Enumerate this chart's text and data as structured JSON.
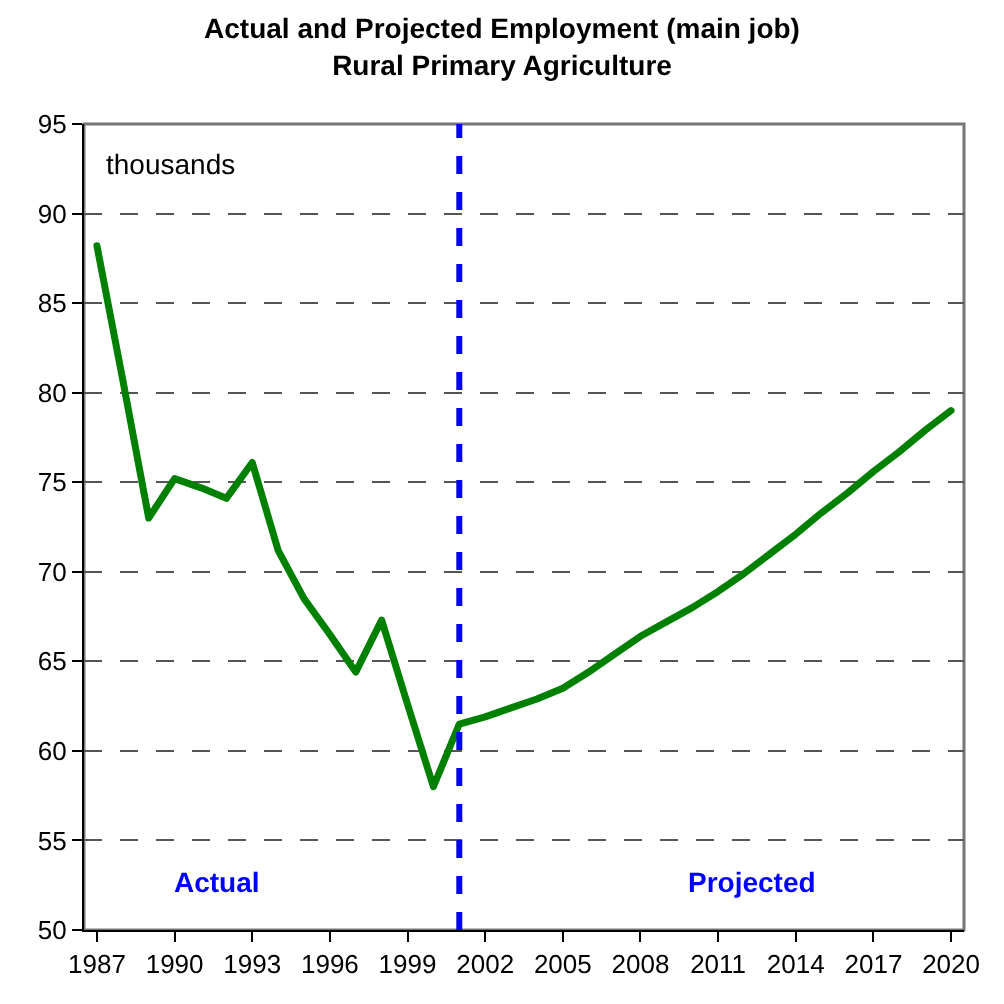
{
  "chart_data": {
    "type": "line",
    "title": "Actual and Projected Employment (main job)",
    "subtitle": "Rural Primary Agriculture",
    "x": [
      1987,
      1988,
      1989,
      1990,
      1991,
      1992,
      1993,
      1994,
      1995,
      1996,
      1997,
      1998,
      1999,
      2000,
      2001,
      2002,
      2003,
      2004,
      2005,
      2006,
      2007,
      2008,
      2009,
      2010,
      2011,
      2012,
      2013,
      2014,
      2015,
      2016,
      2017,
      2018,
      2019,
      2020
    ],
    "series": [
      {
        "color": "#008000",
        "values": [
          88.2,
          80.7,
          73.0,
          75.2,
          74.7,
          74.1,
          76.1,
          71.2,
          68.5,
          66.5,
          64.4,
          67.3,
          62.6,
          58.0,
          61.5,
          61.9,
          62.4,
          62.9,
          63.5,
          64.4,
          65.4,
          66.4,
          67.2,
          68.0,
          68.9,
          69.9,
          71.0,
          72.1,
          73.3,
          74.4,
          75.6,
          76.7,
          77.9,
          79.0
        ]
      }
    ],
    "xlim": [
      1986.5,
      2020.5
    ],
    "xticks": [
      1987,
      1990,
      1993,
      1996,
      1999,
      2002,
      2005,
      2008,
      2011,
      2014,
      2017,
      2020
    ],
    "ylim": [
      50,
      95
    ],
    "yticks": [
      50,
      55,
      60,
      65,
      70,
      75,
      80,
      85,
      90,
      95
    ],
    "grid": "y",
    "legend": false,
    "marker": "none",
    "line_style": "solid",
    "ref_lines": [
      {
        "axis": "x",
        "value": 2001,
        "color": "#0000ff",
        "line_style": "dashed"
      }
    ],
    "annotations": [
      "thousands",
      "Actual",
      "Projected"
    ]
  }
}
